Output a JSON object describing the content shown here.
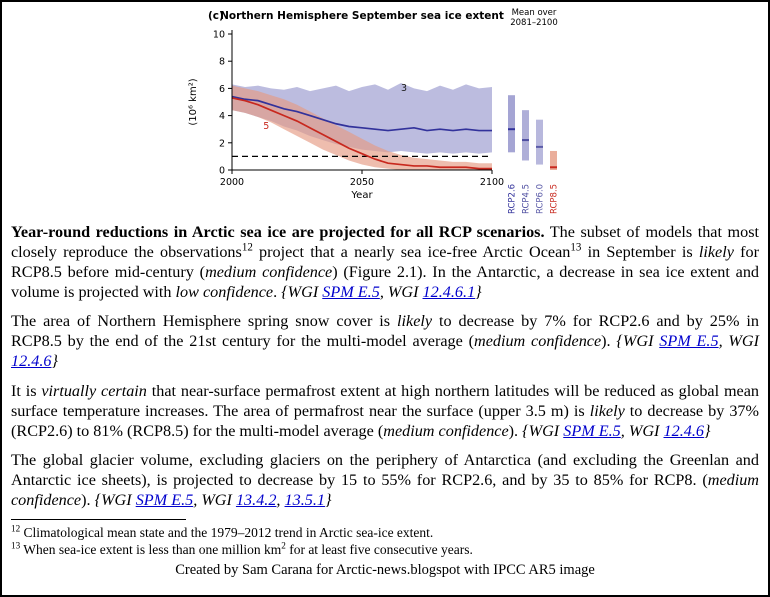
{
  "colors": {
    "link": "#0000cc",
    "page_border": "#000000",
    "text": "#000000"
  },
  "attribution": "Created by Sam Carana for Arctic-news.blogspot with IPCC AR5 image",
  "chart_data": {
    "type": "line",
    "panel_label": "(c)",
    "title": "Northern Hemisphere September sea ice extent",
    "side_title": [
      "Mean over",
      "2081–2100"
    ],
    "xlabel": "Year",
    "ylabel": "(10⁶ km²)",
    "xlim": [
      2000,
      2100
    ],
    "ylim": [
      0,
      10
    ],
    "xticks": [
      2000,
      2050,
      2100
    ],
    "yticks": [
      0,
      2,
      4,
      6,
      8,
      10
    ],
    "threshold": 1,
    "x": [
      2000,
      2005,
      2010,
      2015,
      2020,
      2025,
      2030,
      2035,
      2040,
      2045,
      2050,
      2055,
      2060,
      2065,
      2070,
      2075,
      2080,
      2085,
      2090,
      2095,
      2100
    ],
    "series": [
      {
        "name": "RCP2.6",
        "line_color": "#32329b",
        "band_color": "#8f8fc9",
        "band_opacity": 0.6,
        "mean": [
          5.4,
          5.2,
          5.1,
          4.8,
          4.5,
          4.3,
          4.0,
          3.7,
          3.4,
          3.2,
          3.1,
          3.0,
          2.9,
          3.0,
          3.1,
          2.9,
          3.0,
          2.9,
          3.0,
          2.9,
          2.9
        ],
        "upper": [
          6.3,
          6.1,
          6.2,
          6.0,
          5.9,
          6.1,
          5.8,
          6.0,
          6.2,
          5.8,
          6.1,
          6.3,
          5.9,
          6.4,
          6.0,
          5.8,
          6.2,
          5.9,
          6.3,
          6.0,
          6.1
        ],
        "lower": [
          4.4,
          4.2,
          3.9,
          3.6,
          3.2,
          2.9,
          2.5,
          2.2,
          1.9,
          1.7,
          1.5,
          1.4,
          1.3,
          1.4,
          1.3,
          1.2,
          1.3,
          1.2,
          1.3,
          1.2,
          1.3
        ]
      },
      {
        "name": "RCP8.5",
        "line_color": "#c8281e",
        "band_color": "#e59a82",
        "band_opacity": 0.65,
        "mean": [
          5.3,
          5.1,
          4.8,
          4.4,
          4.0,
          3.6,
          3.1,
          2.6,
          2.1,
          1.6,
          1.2,
          0.8,
          0.5,
          0.4,
          0.3,
          0.3,
          0.2,
          0.2,
          0.2,
          0.1,
          0.1
        ],
        "upper": [
          6.2,
          6.0,
          5.8,
          5.5,
          5.2,
          4.8,
          4.3,
          3.8,
          3.3,
          2.8,
          2.3,
          1.8,
          1.4,
          1.1,
          0.9,
          0.8,
          0.7,
          0.6,
          0.6,
          0.5,
          0.5
        ],
        "lower": [
          4.4,
          4.2,
          3.9,
          3.5,
          3.0,
          2.5,
          2.0,
          1.5,
          1.1,
          0.7,
          0.4,
          0.2,
          0.1,
          0,
          0,
          0,
          0,
          0,
          0,
          0,
          0
        ]
      }
    ],
    "annotations": [
      {
        "text": "3",
        "x": 2065,
        "y": 5.8,
        "color": "#1a1a1a"
      },
      {
        "text": "5",
        "x": 2012,
        "y": 3.0,
        "color": "#c8281e"
      }
    ],
    "side_bars": [
      {
        "label": "RCP2.6",
        "color": "#8f8fc9",
        "low": 1.3,
        "high": 5.5,
        "mean": 3.0,
        "mean_color": "#32329b"
      },
      {
        "label": "RCP4.5",
        "color": "#9b9bce",
        "low": 0.7,
        "high": 4.4,
        "mean": 2.2,
        "mean_color": "#4d4da0"
      },
      {
        "label": "RCP6.0",
        "color": "#a6a6d5",
        "low": 0.4,
        "high": 3.7,
        "mean": 1.7,
        "mean_color": "#5b5ba8"
      },
      {
        "label": "RCP8.5",
        "color": "#e59a82",
        "low": 0.0,
        "high": 1.4,
        "mean": 0.2,
        "mean_color": "#c8281e"
      }
    ]
  },
  "paragraphs": [
    [
      {
        "t": "Year-round reductions in Arctic sea ice are projected for all RCP scenarios.",
        "b": true
      },
      {
        "t": " The subset of models that most closely reproduce the observations"
      },
      {
        "t": "12",
        "sup": true
      },
      {
        "t": " project that a nearly sea ice-free Arctic Ocean"
      },
      {
        "t": "13",
        "sup": true
      },
      {
        "t": " in September is "
      },
      {
        "t": "likely",
        "i": true
      },
      {
        "t": " for RCP8.5 before mid-century ("
      },
      {
        "t": "medium confidence",
        "i": true
      },
      {
        "t": ") (Figure 2.1). In the Antarctic, a decrease in sea ice extent and volume is projected with "
      },
      {
        "t": "low confidence",
        "i": true
      },
      {
        "t": ". "
      },
      {
        "t": "{WGI ",
        "i": true
      },
      {
        "t": "SPM E.5",
        "i": true,
        "link": true
      },
      {
        "t": ", WGI ",
        "i": true
      },
      {
        "t": "12.4.6.1",
        "i": true,
        "link": true
      },
      {
        "t": "}",
        "i": true
      }
    ],
    [
      {
        "t": "The area of Northern Hemisphere spring snow cover is "
      },
      {
        "t": "likely",
        "i": true
      },
      {
        "t": " to decrease by 7% for RCP2.6 and by 25% in RCP8.5 by the end of the 21st century for the multi-model average ("
      },
      {
        "t": "medium confidence",
        "i": true
      },
      {
        "t": "). "
      },
      {
        "t": "{WGI ",
        "i": true
      },
      {
        "t": "SPM E.5",
        "i": true,
        "link": true
      },
      {
        "t": ", WGI ",
        "i": true
      },
      {
        "t": "12.4.6",
        "i": true,
        "link": true
      },
      {
        "t": "}",
        "i": true
      }
    ],
    [
      {
        "t": "It is "
      },
      {
        "t": "virtually certain",
        "i": true
      },
      {
        "t": " that near-surface permafrost extent at high northern latitudes will be reduced as global mean surface temperature increases. The area of permafrost near the surface (upper 3.5 m) is "
      },
      {
        "t": "likely",
        "i": true
      },
      {
        "t": " to decrease by 37% (RCP2.6) to 81% (RCP8.5) for the multi-model average ("
      },
      {
        "t": "medium confidence",
        "i": true
      },
      {
        "t": "). "
      },
      {
        "t": "{WGI ",
        "i": true
      },
      {
        "t": "SPM E.5",
        "i": true,
        "link": true
      },
      {
        "t": ", WGI ",
        "i": true
      },
      {
        "t": "12.4.6",
        "i": true,
        "link": true
      },
      {
        "t": "}",
        "i": true
      }
    ],
    [
      {
        "t": "The global glacier volume, excluding glaciers on the periphery of Antarctica (and excluding the Greenlan and Antarctic ice sheets), is projected to decrease by 15 to 55% for RCP2.6, and by 35 to 85% for RCP8. ("
      },
      {
        "t": "medium confidence",
        "i": true
      },
      {
        "t": "). "
      },
      {
        "t": "{WGI ",
        "i": true
      },
      {
        "t": "SPM E.5",
        "i": true,
        "link": true
      },
      {
        "t": ", WGI ",
        "i": true
      },
      {
        "t": "13.4.2",
        "i": true,
        "link": true
      },
      {
        "t": ", ",
        "i": true
      },
      {
        "t": "13.5.1",
        "i": true,
        "link": true
      },
      {
        "t": "}",
        "i": true
      }
    ]
  ],
  "footnotes": [
    [
      {
        "t": "12",
        "sup": true
      },
      {
        "t": " Climatological mean state and the 1979–2012 trend in Arctic sea-ice extent."
      }
    ],
    [
      {
        "t": "13",
        "sup": true
      },
      {
        "t": " When sea-ice extent is less than one million km"
      },
      {
        "t": "2",
        "sup": true
      },
      {
        "t": " for at least five consecutive years."
      }
    ]
  ]
}
